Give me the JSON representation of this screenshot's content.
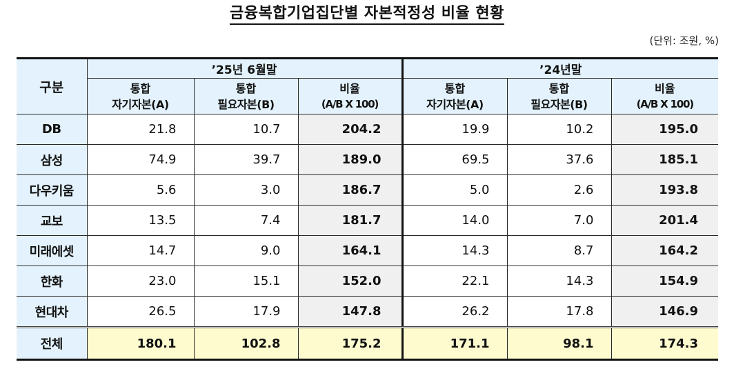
{
  "title": "금융복합기업집단별 자본적정성 비율 현황",
  "unit": "(단위: 조원, %)",
  "table": {
    "corner_header": "구분",
    "periods": [
      {
        "label": "’25년  6월말",
        "columns": [
          {
            "line1": "통합",
            "line2": "자기자본(A)"
          },
          {
            "line1": "통합",
            "line2": "필요자본(B)"
          },
          {
            "line1": "비율",
            "line2": "(A/B X 100)"
          }
        ]
      },
      {
        "label": "’24년말",
        "columns": [
          {
            "line1": "통합",
            "line2": "자기자본(A)"
          },
          {
            "line1": "통합",
            "line2": "필요자본(B)"
          },
          {
            "line1": "비율",
            "line2": "(A/B X 100)"
          }
        ]
      }
    ],
    "rows": [
      {
        "name": "DB",
        "v": [
          "21.8",
          "10.7",
          "204.2",
          "19.9",
          "10.2",
          "195.0"
        ]
      },
      {
        "name": "삼성",
        "v": [
          "74.9",
          "39.7",
          "189.0",
          "69.5",
          "37.6",
          "185.1"
        ]
      },
      {
        "name": "다우키움",
        "v": [
          "5.6",
          "3.0",
          "186.7",
          "5.0",
          "2.6",
          "193.8"
        ]
      },
      {
        "name": "교보",
        "v": [
          "13.5",
          "7.4",
          "181.7",
          "14.0",
          "7.0",
          "201.4"
        ]
      },
      {
        "name": "미래에셋",
        "v": [
          "14.7",
          "9.0",
          "164.1",
          "14.3",
          "8.7",
          "164.2"
        ]
      },
      {
        "name": "한화",
        "v": [
          "23.0",
          "15.1",
          "152.0",
          "22.1",
          "14.3",
          "154.9"
        ]
      },
      {
        "name": "현대차",
        "v": [
          "26.5",
          "17.9",
          "147.8",
          "26.2",
          "17.8",
          "146.9"
        ]
      }
    ],
    "total": {
      "name": "전체",
      "v": [
        "180.1",
        "102.8",
        "175.2",
        "171.1",
        "98.1",
        "174.3"
      ]
    }
  },
  "colors": {
    "header_bg": "#e3f2fc",
    "ratio_bg": "#f0f0f0",
    "total_bg": "#fefccf",
    "border": "#2a2a2a"
  }
}
